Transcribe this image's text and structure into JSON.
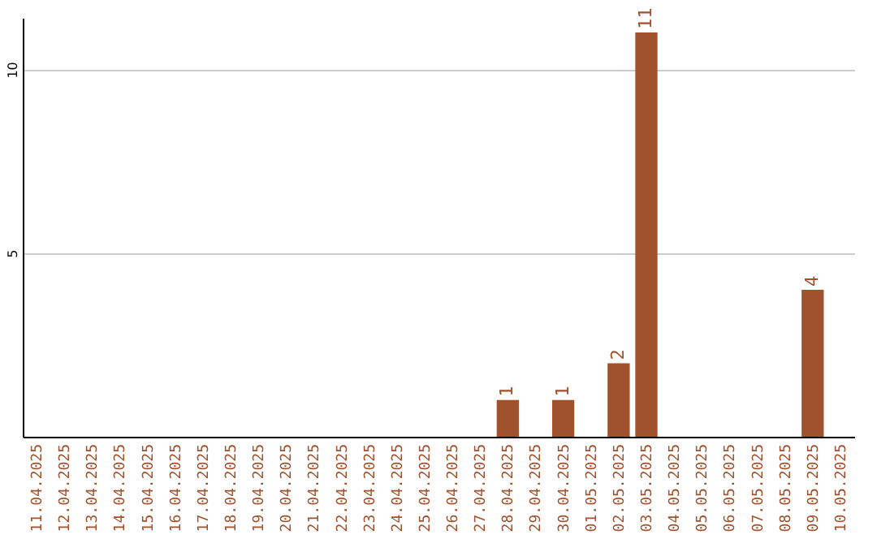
{
  "chart_data": {
    "type": "bar",
    "categories": [
      "11.04.2025",
      "12.04.2025",
      "13.04.2025",
      "14.04.2025",
      "15.04.2025",
      "16.04.2025",
      "17.04.2025",
      "18.04.2025",
      "19.04.2025",
      "20.04.2025",
      "21.04.2025",
      "22.04.2025",
      "23.04.2025",
      "24.04.2025",
      "25.04.2025",
      "26.04.2025",
      "27.04.2025",
      "28.04.2025",
      "29.04.2025",
      "30.04.2025",
      "01.05.2025",
      "02.05.2025",
      "03.05.2025",
      "04.05.2025",
      "05.05.2025",
      "06.05.2025",
      "07.05.2025",
      "08.05.2025",
      "09.05.2025",
      "10.05.2025"
    ],
    "values": [
      0,
      0,
      0,
      0,
      0,
      0,
      0,
      0,
      0,
      0,
      0,
      0,
      0,
      0,
      0,
      0,
      0,
      1,
      0,
      1,
      0,
      2,
      11,
      0,
      0,
      0,
      0,
      0,
      4,
      0
    ],
    "color": "#a0522d",
    "value_labels": [
      null,
      null,
      null,
      null,
      null,
      null,
      null,
      null,
      null,
      null,
      null,
      null,
      null,
      null,
      null,
      null,
      null,
      "1",
      null,
      "1",
      null,
      "2",
      "11",
      null,
      null,
      null,
      null,
      null,
      "4",
      null
    ],
    "ylim": [
      0,
      11.4
    ],
    "yticks": [
      5,
      10
    ],
    "grid": "y"
  }
}
